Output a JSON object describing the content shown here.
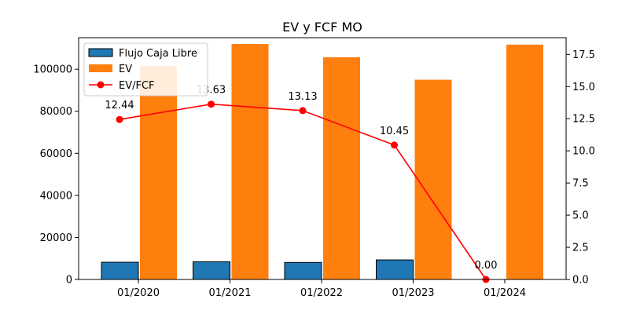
{
  "chart_data": {
    "type": "bar",
    "title": "EV y FCF MO",
    "categories": [
      "01/2020",
      "01/2021",
      "01/2022",
      "01/2023",
      "01/2024"
    ],
    "series": [
      {
        "name": "Flujo Caja Libre",
        "type": "bar",
        "axis": "left",
        "color": "#1f77b4",
        "values": [
          8200,
          8400,
          8100,
          9300,
          0
        ]
      },
      {
        "name": "EV",
        "type": "bar",
        "axis": "left",
        "color": "#ff7f0e",
        "values": [
          101500,
          112000,
          105700,
          95000,
          111700
        ]
      },
      {
        "name": "EV/FCF",
        "type": "line",
        "axis": "right",
        "color": "#ff0000",
        "values": [
          12.44,
          13.63,
          13.13,
          10.45,
          0.0
        ],
        "labels": [
          "12.44",
          "13.63",
          "13.13",
          "10.45",
          "0.00"
        ]
      }
    ],
    "y_left": {
      "ylim": [
        0,
        115000
      ],
      "ticks": [
        0,
        20000,
        40000,
        60000,
        80000,
        100000
      ],
      "tick_labels": [
        "0",
        "20000",
        "40000",
        "60000",
        "80000",
        "100000"
      ]
    },
    "y_right": {
      "ylim": [
        0,
        18.8
      ],
      "ticks": [
        0,
        2.5,
        5,
        7.5,
        10,
        12.5,
        15,
        17.5
      ],
      "tick_labels": [
        "0.0",
        "2.5",
        "5.0",
        "7.5",
        "10.0",
        "12.5",
        "15.0",
        "17.5"
      ]
    },
    "legend": {
      "placement": "top-left",
      "entries": [
        "Flujo Caja Libre",
        "EV",
        "EV/FCF"
      ]
    },
    "grid": false
  }
}
